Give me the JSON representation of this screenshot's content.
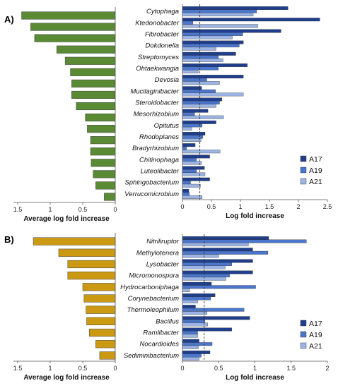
{
  "colors": {
    "panel_a_avg": "#5a8a34",
    "panel_b_avg": "#cc9a12",
    "A17": "#1f3f8c",
    "A19": "#4b76cc",
    "A21": "#9cb4e4"
  },
  "chart_data": [
    {
      "panel": "A)",
      "type": "bar",
      "orientation": "horizontal",
      "categories": [
        "Cytophaga",
        "Ktedonobacter",
        "Fibrobacter",
        "Dokdonella",
        "Streptomyces",
        "Ohtaekwangia",
        "Devosia",
        "Mucilaginibacter",
        "Steroidobacter",
        "Mesorhizobium",
        "Opitutus",
        "Rhodoplanes",
        "Bradyrhizobium",
        "Chitinophaga",
        "Luteolibacter",
        "Sphingobacterium",
        "Verrucomicrobium"
      ],
      "average": {
        "xlabel": "Average log fold increase",
        "xlim": [
          1.5,
          0
        ],
        "xticks": [
          "1.5",
          "1",
          "0.5",
          "0"
        ],
        "xtick_values": [
          1.5,
          1,
          0.5,
          0
        ],
        "values": [
          1.44,
          1.3,
          1.24,
          0.9,
          0.77,
          0.69,
          0.67,
          0.67,
          0.6,
          0.46,
          0.43,
          0.38,
          0.38,
          0.37,
          0.34,
          0.3,
          0.17
        ]
      },
      "detail": {
        "xlabel": "Log fold increase",
        "xlim": [
          0,
          2.5
        ],
        "xticks": [
          "0",
          "0.5",
          "1",
          "1.5",
          "2",
          "2.5"
        ],
        "xtick_values": [
          0,
          0.5,
          1,
          1.5,
          2,
          2.5
        ],
        "reference_line": 0.3,
        "legend": [
          "A17",
          "A19",
          "A21"
        ],
        "series": [
          {
            "name": "A17",
            "values": [
              1.82,
              2.37,
              1.7,
              1.05,
              0.92,
              1.12,
              1.05,
              0.33,
              0.68,
              0.44,
              0.58,
              0.39,
              0.22,
              0.47,
              0.38,
              0.47,
              0.11
            ]
          },
          {
            "name": "A19",
            "values": [
              1.28,
              0.18,
              1.04,
              0.98,
              0.62,
              0.62,
              0.42,
              0.57,
              0.64,
              0.21,
              0.34,
              0.35,
              0.07,
              0.24,
              0.24,
              0.14,
              0.12
            ]
          },
          {
            "name": "A21",
            "values": [
              1.22,
              1.3,
              0.86,
              0.58,
              0.7,
              0.27,
              0.64,
              1.05,
              0.58,
              0.71,
              0.16,
              0.32,
              0.65,
              0.33,
              0.39,
              0.31,
              0.34
            ]
          }
        ]
      }
    },
    {
      "panel": "B)",
      "type": "bar",
      "orientation": "horizontal",
      "categories": [
        "Nitriliruptor",
        "Methylotenera",
        "Lysobacter",
        "Micromonospora",
        "Hydrocarboniphaga",
        "Corynebacterium",
        "Thermoleophilum",
        "Bacillus",
        "Ramlibacter",
        "Nocardioides",
        "Sediminibacterium"
      ],
      "average": {
        "xlabel": "Average log fold increase",
        "xlim": [
          1.5,
          0
        ],
        "xticks": [
          "1.5",
          "1",
          "0.5",
          "0"
        ],
        "xtick_values": [
          1.5,
          1,
          0.5,
          0
        ],
        "values": [
          1.26,
          0.87,
          0.73,
          0.73,
          0.5,
          0.48,
          0.45,
          0.44,
          0.4,
          0.3,
          0.24
        ]
      },
      "detail": {
        "xlabel": "Log fold increase",
        "xlim": [
          0,
          2
        ],
        "xticks": [
          "0",
          "0.5",
          "1",
          "1.5",
          "2"
        ],
        "xtick_values": [
          0,
          0.5,
          1,
          1.5,
          2
        ],
        "reference_line": 0.3,
        "legend": [
          "A17",
          "A19",
          "A21"
        ],
        "series": [
          {
            "name": "A17",
            "values": [
              1.19,
              0.97,
              0.97,
              0.97,
              0.4,
              0.45,
              0.18,
              0.93,
              0.68,
              0.23,
              0.38
            ]
          },
          {
            "name": "A19",
            "values": [
              1.71,
              1.18,
              0.68,
              0.65,
              1.01,
              0.39,
              0.85,
              0.31,
              0.21,
              0.41,
              0.26
            ]
          },
          {
            "name": "A21",
            "values": [
              0.91,
              0.5,
              0.59,
              0.6,
              0.1,
              0.21,
              0.34,
              0.35,
              0.21,
              0.22,
              0.23
            ]
          }
        ]
      }
    }
  ]
}
